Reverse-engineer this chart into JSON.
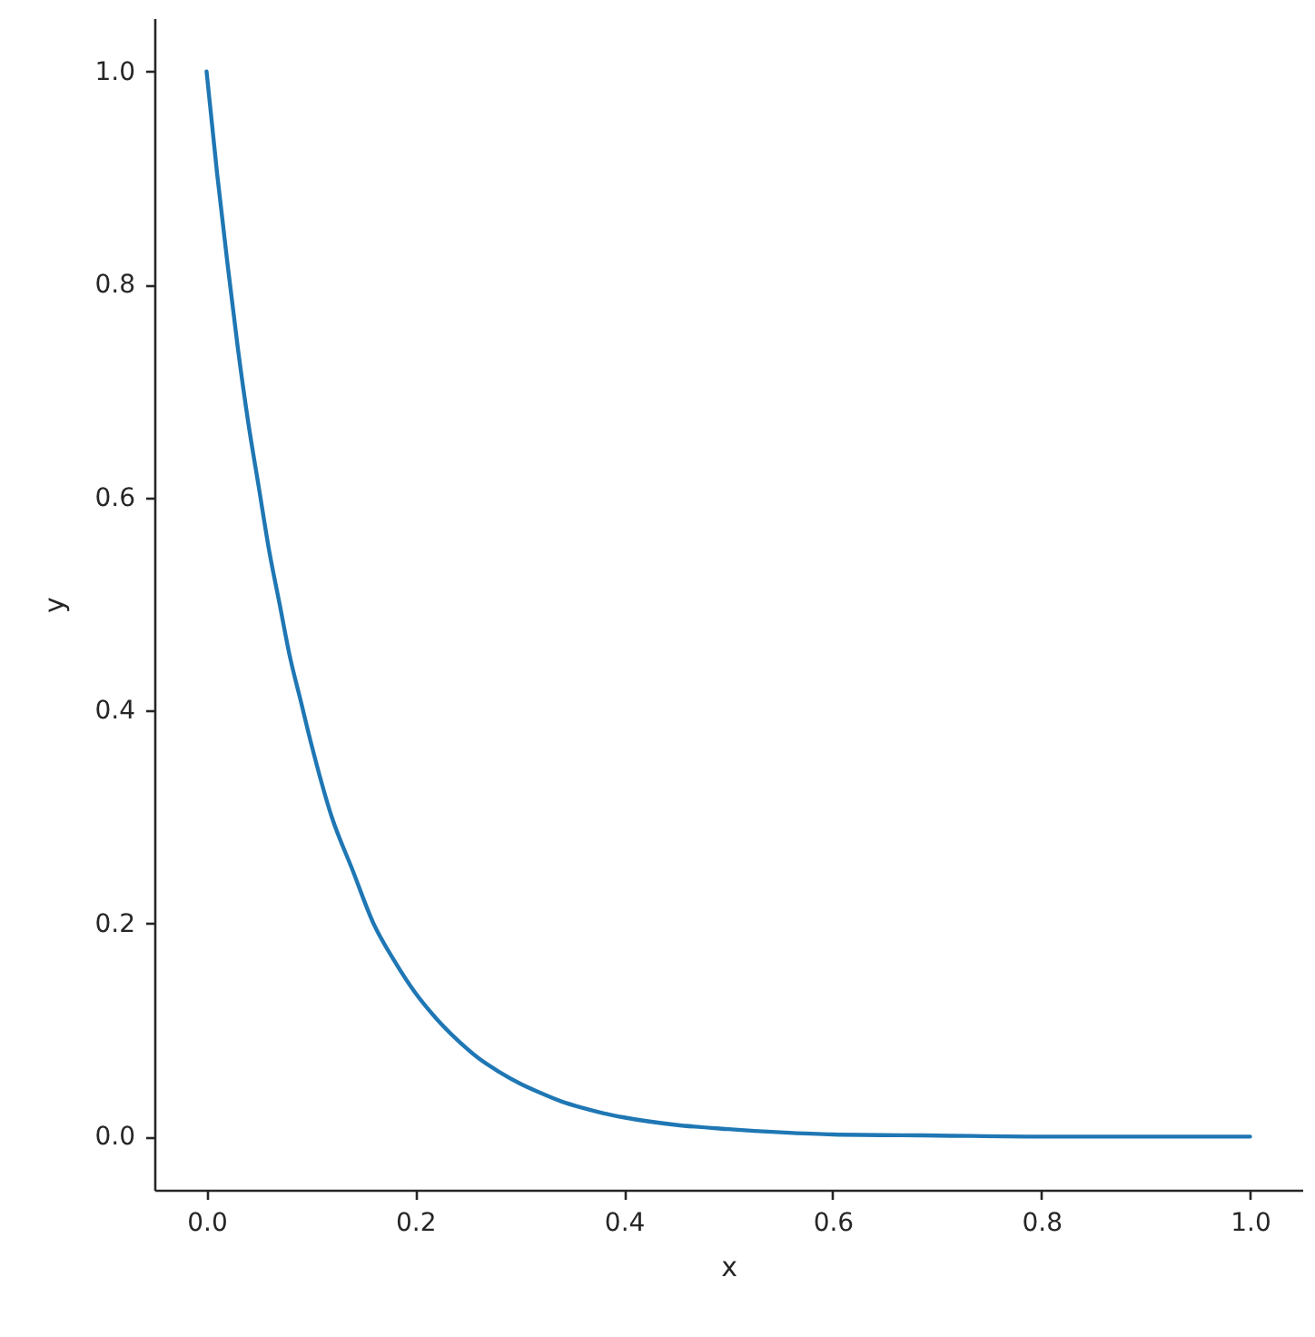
{
  "chart_data": {
    "type": "line",
    "xlabel": "x",
    "ylabel": "y",
    "x": [
      0.0,
      0.01,
      0.02,
      0.03,
      0.04,
      0.05,
      0.06,
      0.07,
      0.08,
      0.09,
      0.1,
      0.12,
      0.14,
      0.16,
      0.18,
      0.2,
      0.22,
      0.24,
      0.26,
      0.28,
      0.3,
      0.32,
      0.34,
      0.36,
      0.38,
      0.4,
      0.45,
      0.5,
      0.55,
      0.6,
      0.7,
      0.8,
      0.9,
      1.0
    ],
    "series": [
      {
        "color": "#1f77b4",
        "values": [
          1.0,
          0.905,
          0.82,
          0.74,
          0.67,
          0.61,
          0.55,
          0.5,
          0.45,
          0.41,
          0.37,
          0.3,
          0.25,
          0.2,
          0.165,
          0.135,
          0.111,
          0.091,
          0.074,
          0.061,
          0.05,
          0.041,
          0.033,
          0.027,
          0.022,
          0.018,
          0.011,
          0.007,
          0.004,
          0.002,
          0.001,
          0.0,
          0.0,
          0.0
        ]
      }
    ],
    "line_style": "solid",
    "xlim": [
      -0.05,
      1.05
    ],
    "ylim": [
      -0.05,
      1.05
    ],
    "xticks": [
      {
        "value": 0,
        "label": "0.0"
      },
      0.2,
      0.4,
      0.6,
      0.8,
      {
        "value": 1,
        "label": "1.0"
      }
    ],
    "yticks": [
      {
        "value": 0,
        "label": "0.0"
      },
      0.2,
      0.4,
      0.6,
      0.8,
      {
        "value": 1,
        "label": "1.0"
      }
    ],
    "grid": false
  }
}
